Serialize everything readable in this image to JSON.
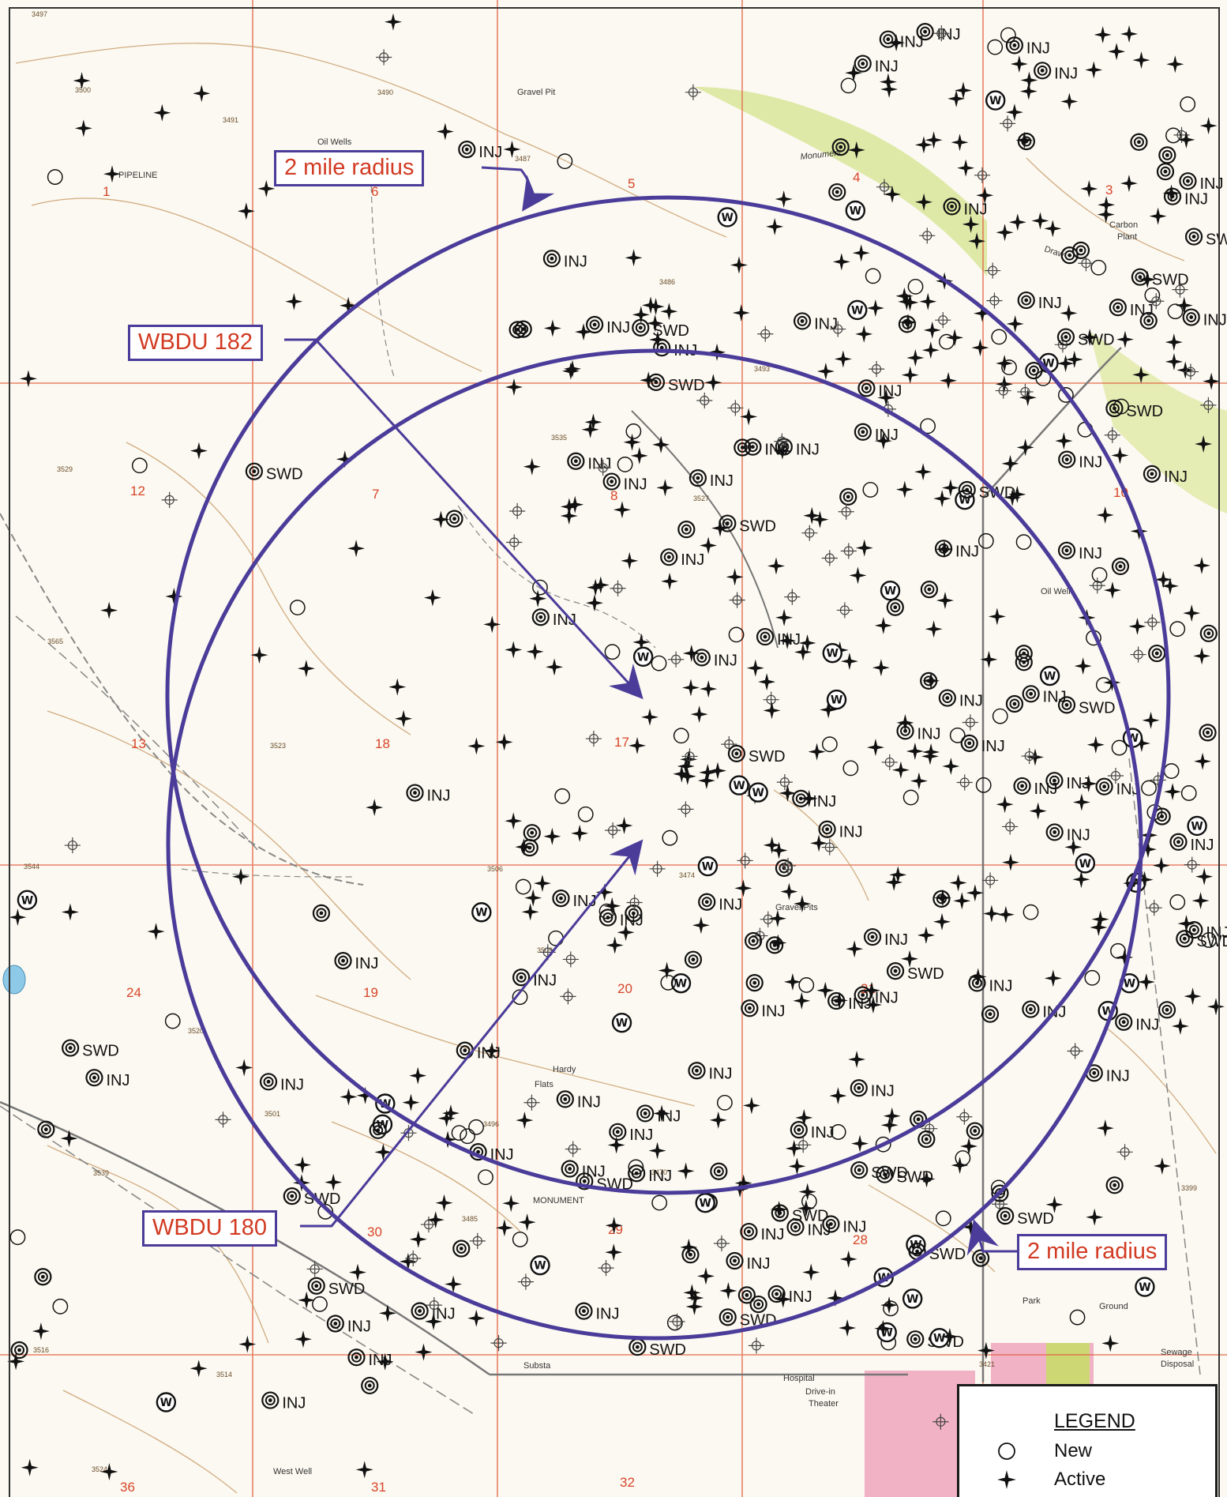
{
  "colors": {
    "circle": "#4b3c9a",
    "callout_text": "#d23a22",
    "section_line": "#e35a3a",
    "contour": "#c89866",
    "road": "#777777",
    "town": "#ef9ab7",
    "terrain_green": "#c9dc6a",
    "well": "#111111"
  },
  "callouts": {
    "radius_top": "2 mile radius",
    "radius_bottom": "2 mile radius",
    "wbdu_182": "WBDU 182",
    "wbdu_180": "WBDU 180"
  },
  "legend": {
    "title": "LEGEND",
    "items": [
      {
        "icon": "open-circle-icon",
        "label": "New"
      },
      {
        "icon": "four-point-star-icon",
        "label": "Active"
      }
    ]
  },
  "map_labels": {
    "section_numbers": [
      "1",
      "6",
      "5",
      "4",
      "3",
      "12",
      "7",
      "8",
      "10",
      "13",
      "18",
      "17",
      "24",
      "19",
      "20",
      "21",
      "30",
      "29",
      "28",
      "36",
      "31",
      "32"
    ],
    "place_names": [
      "Monument",
      "Gravel Pit",
      "Gravel Pits",
      "Oil Wells",
      "Oil Well",
      "Hardy",
      "Flats",
      "Hospital",
      "Drive-in",
      "Theater",
      "Park",
      "Ground",
      "Sewage",
      "Disposal",
      "Carbon",
      "Plant",
      "Substa",
      "West Well",
      "Draw",
      "PIPELINE",
      "MONUMENT"
    ],
    "elevations": [
      "3497",
      "3500",
      "3490",
      "3491",
      "3486",
      "3487",
      "3493",
      "3535",
      "3529",
      "3527",
      "3523",
      "3506",
      "3474",
      "3509",
      "3520",
      "3501",
      "3496",
      "3485",
      "3470",
      "3565",
      "3544",
      "3539",
      "3516",
      "3514",
      "3524",
      "3421",
      "3399"
    ]
  },
  "well_labels": [
    "INJ",
    "SWD",
    "W"
  ]
}
